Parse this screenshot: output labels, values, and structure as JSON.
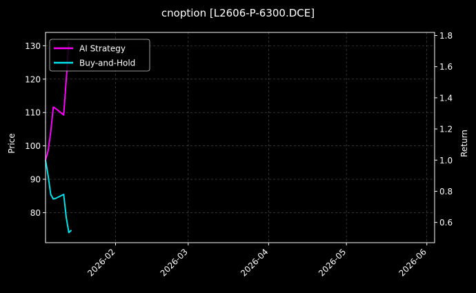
{
  "chart_data": {
    "type": "line",
    "title": "cnoption [L2606-P-6300.DCE]",
    "ylabel": "Price",
    "y2label": "Return",
    "x_ticks": [
      "2026-02",
      "2026-03",
      "2026-04",
      "2026-05",
      "2026-06"
    ],
    "x_tick_dates": [
      "2026-02-01",
      "2026-03-01",
      "2026-04-01",
      "2026-05-01",
      "2026-06-01"
    ],
    "xlim": [
      "2026-01-05",
      "2026-06-04"
    ],
    "ylim": [
      71,
      134
    ],
    "yticks": [
      80,
      90,
      100,
      110,
      120,
      130
    ],
    "y2lim": [
      0.47,
      1.82
    ],
    "y2ticks": [
      "0.6",
      "0.8",
      "1.0",
      "1.2",
      "1.4",
      "1.6",
      "1.8"
    ],
    "grid": true,
    "legend_position": "top-left",
    "colors": {
      "background": "#000000",
      "strategy": "#ff00ff",
      "buyhold": "#00e5ee",
      "grid": "#555555",
      "text": "#ffffff"
    },
    "series": [
      {
        "name": "AI Strategy",
        "axis": "right",
        "color": "#ff00ff",
        "x": [
          "2026-01-05",
          "2026-01-06",
          "2026-01-07",
          "2026-01-08",
          "2026-01-09",
          "2026-01-12",
          "2026-01-13",
          "2026-01-14"
        ],
        "y": [
          1.0,
          1.06,
          1.18,
          1.34,
          1.33,
          1.29,
          1.52,
          1.76
        ]
      },
      {
        "name": "Buy-and-Hold",
        "axis": "right",
        "color": "#00e5ee",
        "x": [
          "2026-01-05",
          "2026-01-06",
          "2026-01-07",
          "2026-01-08",
          "2026-01-09",
          "2026-01-12",
          "2026-01-13",
          "2026-01-14",
          "2026-01-15"
        ],
        "y": [
          1.0,
          0.9,
          0.78,
          0.75,
          0.755,
          0.78,
          0.63,
          0.535,
          0.55
        ]
      }
    ]
  }
}
